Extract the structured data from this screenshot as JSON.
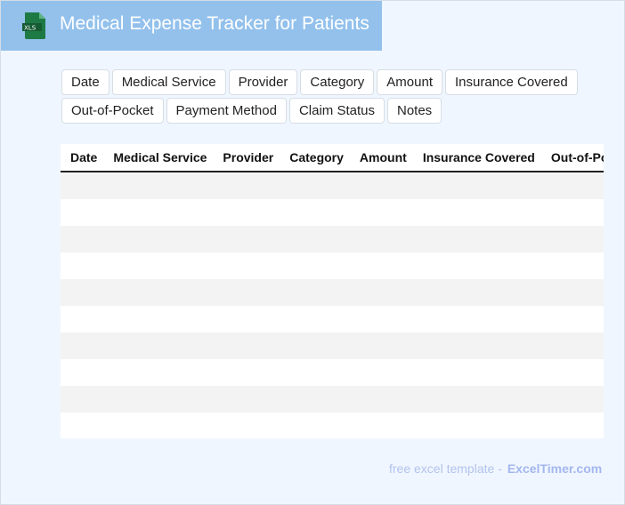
{
  "header": {
    "title": "Medical Expense Tracker for Patients",
    "logo_text": "XLS",
    "logo_icon": "excel-file-icon",
    "brand_color": "#93c1ec"
  },
  "chips": [
    "Date",
    "Medical Service",
    "Provider",
    "Category",
    "Amount",
    "Insurance Covered",
    "Out-of-Pocket",
    "Payment Method",
    "Claim Status",
    "Notes"
  ],
  "table": {
    "columns": [
      "Date",
      "Medical Service",
      "Provider",
      "Category",
      "Amount",
      "Insurance Covered",
      "Out-of-Pocket"
    ],
    "row_count": 10
  },
  "footer": {
    "text": "free excel template -",
    "link": "ExcelTimer.com"
  }
}
